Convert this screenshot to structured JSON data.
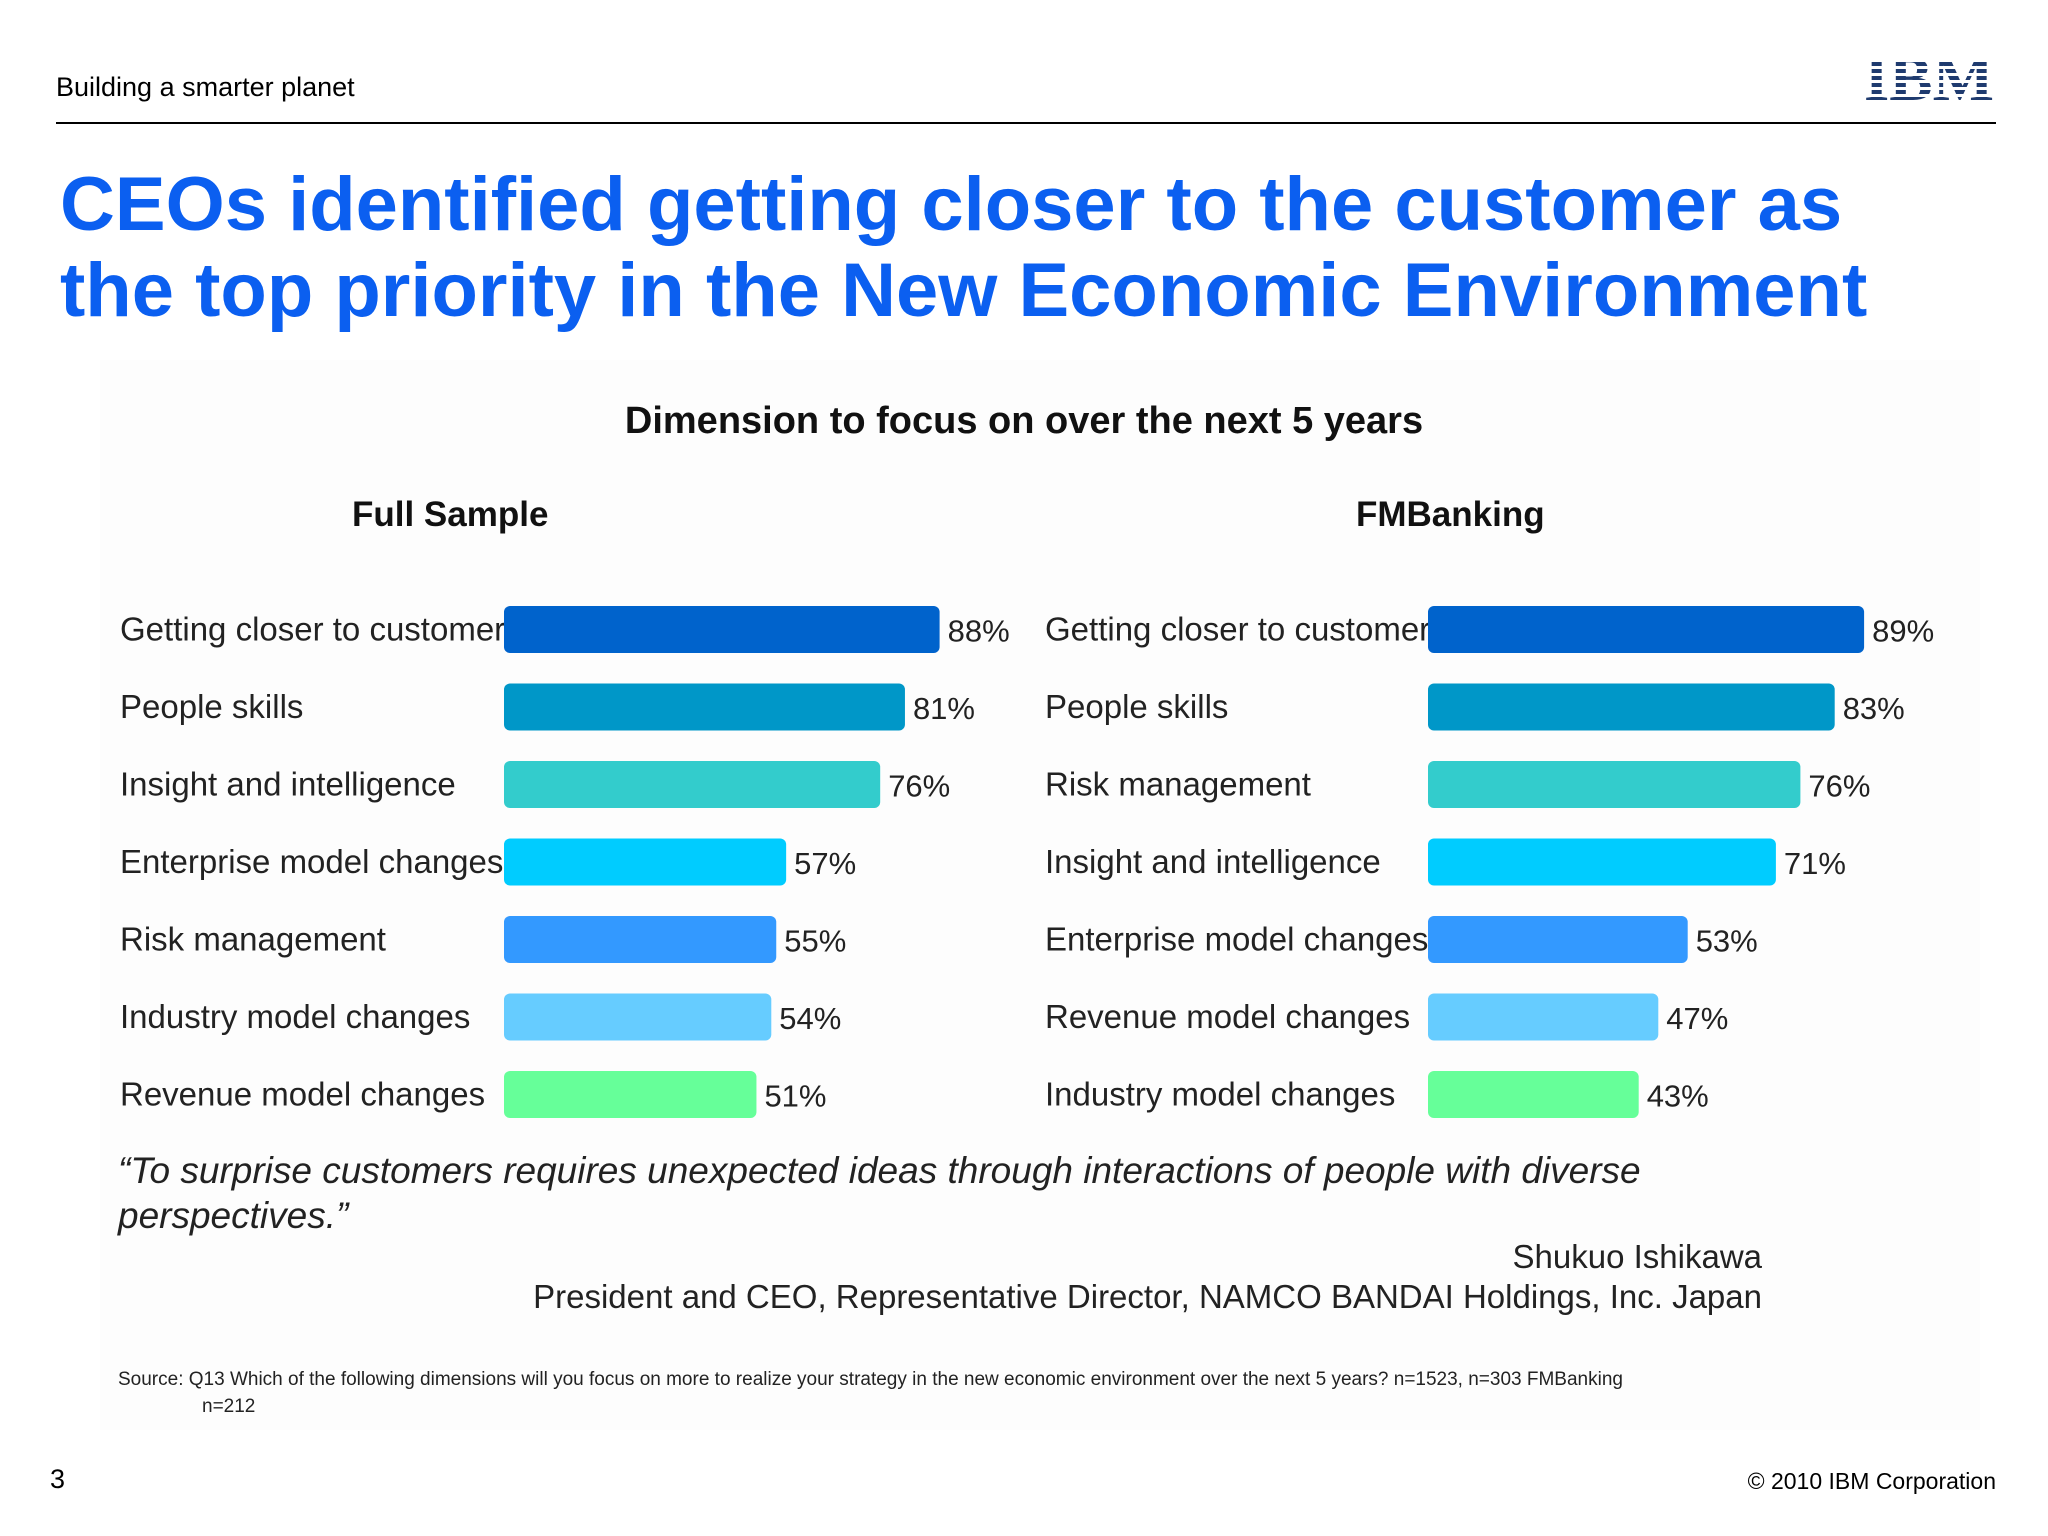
{
  "header": {
    "tagline": "Building a smarter planet",
    "logo_text": "IBM"
  },
  "title": {
    "line1": "CEOs identified getting closer to the customer as",
    "line2": "the top priority in the New Economic Environment"
  },
  "colors": {
    "title_blue": "#0b5ff0",
    "bar_palette": [
      "#0063cc",
      "#0097c8",
      "#33cccc",
      "#00ccff",
      "#3399ff",
      "#66ccff",
      "#66ff99"
    ]
  },
  "chart_data": [
    {
      "type": "bar",
      "orientation": "horizontal",
      "title": "Dimension to focus on over the next 5 years",
      "subtitle": "Full Sample",
      "categories": [
        "Getting closer to customer",
        "People skills",
        "Insight and intelligence",
        "Enterprise model changes",
        "Risk management",
        "Industry model changes",
        "Revenue model changes"
      ],
      "values": [
        88,
        81,
        76,
        57,
        55,
        54,
        51
      ],
      "value_labels": [
        "88%",
        "81%",
        "76%",
        "57%",
        "55%",
        "54%",
        "51%"
      ],
      "xlim": [
        0,
        100
      ],
      "grid": false
    },
    {
      "type": "bar",
      "orientation": "horizontal",
      "title": "Dimension to focus on over the next 5 years",
      "subtitle": "FMBanking",
      "categories": [
        "Getting closer to customer",
        "People skills",
        "Risk management",
        "Insight and intelligence",
        "Enterprise model changes",
        "Revenue model changes",
        "Industry model changes"
      ],
      "values": [
        89,
        83,
        76,
        71,
        53,
        47,
        43
      ],
      "value_labels": [
        "89%",
        "83%",
        "76%",
        "71%",
        "53%",
        "47%",
        "43%"
      ],
      "xlim": [
        0,
        100
      ],
      "grid": false
    }
  ],
  "quote": {
    "line1": "“To surprise customers requires unexpected ideas through interactions of people with diverse",
    "line2": "perspectives.”",
    "name": "Shukuo Ishikawa",
    "title": "President and CEO, Representative Director, NAMCO BANDAI Holdings, Inc. Japan"
  },
  "source": {
    "line1": "Source:  Q13  Which of the following dimensions will you focus on more to realize your strategy in the new economic environment over the next 5 years? n=1523, n=303 FMBanking",
    "line2": "n=212"
  },
  "footer": {
    "page_number": "3",
    "copyright": "© 2010 IBM Corporation"
  }
}
